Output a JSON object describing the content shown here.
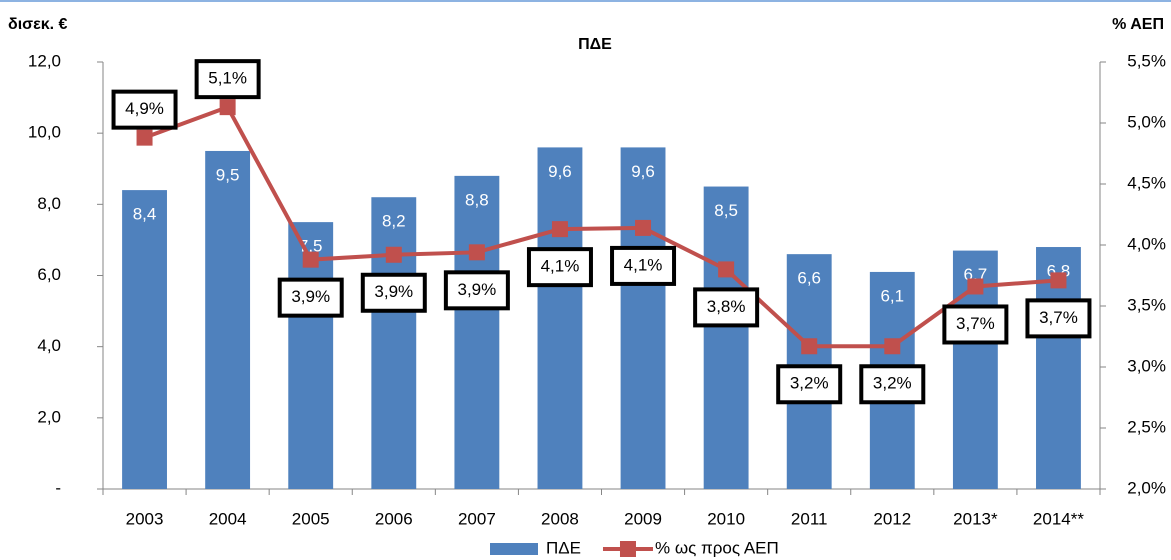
{
  "chart_data": {
    "type": "bar-line",
    "title": "ΠΔΕ",
    "y_label": "δισεκ. €",
    "y2_label": "% ΑΕΠ",
    "categories": [
      "2003",
      "2004",
      "2005",
      "2006",
      "2007",
      "2008",
      "2009",
      "2010",
      "2011",
      "2012",
      "2013*",
      "2014**"
    ],
    "series": [
      {
        "name": "ΠΔΕ",
        "type": "bar",
        "color": "#4f81bd",
        "values": [
          8.4,
          9.5,
          7.5,
          8.2,
          8.8,
          9.6,
          9.6,
          8.5,
          6.6,
          6.1,
          6.7,
          6.8
        ],
        "value_labels": [
          "8,4",
          "9,5",
          "7,5",
          "8,2",
          "8,8",
          "9,6",
          "9,6",
          "8,5",
          "6,6",
          "6,1",
          "6,7",
          "6,8"
        ]
      },
      {
        "name": "% ως προς ΑΕΠ",
        "type": "line",
        "axis": "y2",
        "color": "#c0504d",
        "values": [
          4.88,
          5.13,
          3.88,
          3.92,
          3.94,
          4.13,
          4.14,
          3.8,
          3.17,
          3.17,
          3.66,
          3.71
        ],
        "value_labels": [
          "4,9%",
          "5,1%",
          "3,9%",
          "3,9%",
          "3,9%",
          "4,1%",
          "4,1%",
          "3,8%",
          "3,2%",
          "3,2%",
          "3,7%",
          "3,7%"
        ]
      }
    ],
    "ylim": [
      0,
      12
    ],
    "yticks": [
      {
        "value": 0,
        "label": "-"
      },
      {
        "value": 2,
        "label": "2,0"
      },
      {
        "value": 4,
        "label": "4,0"
      },
      {
        "value": 6,
        "label": "6,0"
      },
      {
        "value": 8,
        "label": "8,0"
      },
      {
        "value": 10,
        "label": "10,0"
      },
      {
        "value": 12,
        "label": "12,0"
      }
    ],
    "y2lim": [
      2,
      5.5
    ],
    "y2ticks": [
      {
        "value": 2,
        "label": "2,0%"
      },
      {
        "value": 2.5,
        "label": "2,5%"
      },
      {
        "value": 3,
        "label": "3,0%"
      },
      {
        "value": 3.5,
        "label": "3,5%"
      },
      {
        "value": 4,
        "label": "4,0%"
      },
      {
        "value": 4.5,
        "label": "4,5%"
      },
      {
        "value": 5,
        "label": "5,0%"
      },
      {
        "value": 5.5,
        "label": "5,5%"
      }
    ],
    "grid": false,
    "legend": "bottom"
  }
}
